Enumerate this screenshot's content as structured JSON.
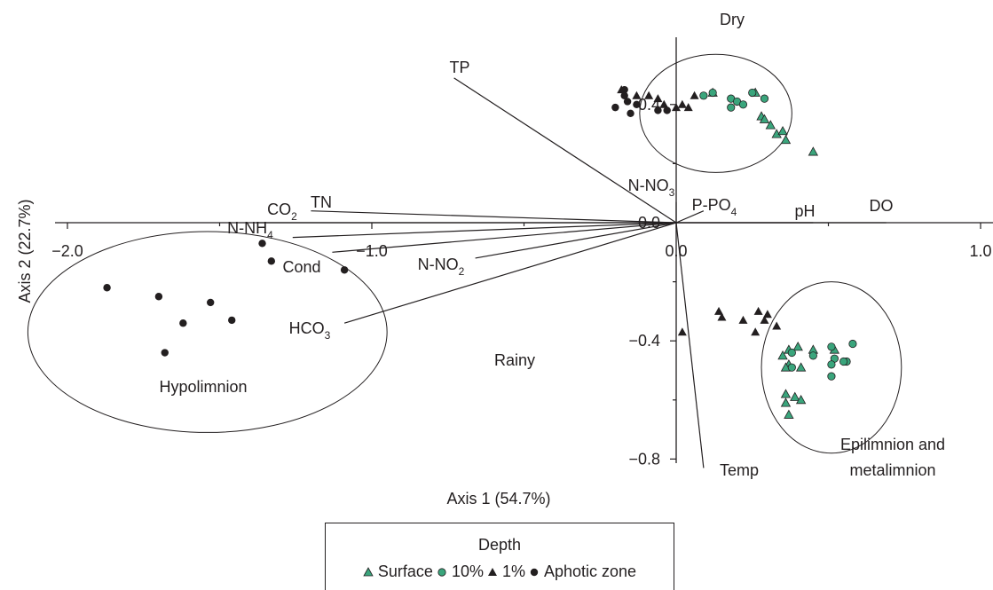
{
  "chart_data": {
    "type": "scatter",
    "xlabel": "Axis 1 (54.7%)",
    "ylabel": "Axis 2 (22.7%)",
    "xlim": [
      -2.0,
      1.0
    ],
    "ylim": [
      -0.8,
      0.6
    ],
    "x_ticks": [
      {
        "value": -2.0,
        "label": "−2.0"
      },
      {
        "value": -1.0,
        "label": "−1.0"
      },
      {
        "value": 0.0,
        "label": "0.0"
      },
      {
        "value": 1.0,
        "label": "1.0"
      }
    ],
    "y_ticks": [
      {
        "value": 0.4,
        "label": "0.4"
      },
      {
        "value": 0.0,
        "label": "0.0"
      },
      {
        "value": -0.4,
        "label": "−0.4"
      },
      {
        "value": -0.8,
        "label": "−0.8"
      }
    ],
    "grid": false,
    "legend": {
      "title": "Depth",
      "position": "bottom",
      "entries": [
        {
          "label": "Surface",
          "marker": "triangle",
          "color": "#3aa57c"
        },
        {
          "label": "10%",
          "marker": "circle",
          "color": "#3aa57c"
        },
        {
          "label": "1%",
          "marker": "triangle",
          "color": "#231f20"
        },
        {
          "label": "Aphotic zone",
          "marker": "circle",
          "color": "#231f20"
        }
      ]
    },
    "vectors": [
      {
        "name": "TP",
        "x": -0.73,
        "y": 0.49
      },
      {
        "name": "TN",
        "x": -1.2,
        "y": 0.04
      },
      {
        "name": "CO",
        "sub": "2",
        "x": -1.38,
        "y": 0.0
      },
      {
        "name": "N-NH",
        "sub": "4",
        "x": -1.26,
        "y": -0.05
      },
      {
        "name": "Cond",
        "x": -1.13,
        "y": -0.1
      },
      {
        "name": "N-NO",
        "sub": "2",
        "x": -0.66,
        "y": -0.12
      },
      {
        "name": "HCO",
        "sub": "3",
        "x": -1.09,
        "y": -0.34
      },
      {
        "name": "N-NO",
        "sub": "3",
        "x": 0.0,
        "y": 0.07
      },
      {
        "name": "P-PO",
        "sub": "4",
        "x": 0.09,
        "y": 0.04
      },
      {
        "name": "pH",
        "x": 0.45,
        "y": 0.0
      },
      {
        "name": "DO",
        "x": 0.69,
        "y": 0.0
      },
      {
        "name": "Temp",
        "x": 0.09,
        "y": -0.83
      }
    ],
    "ellipses": [
      {
        "label": "Dry",
        "cx": 0.13,
        "cy": 0.37,
        "rx": 0.25,
        "ry": 0.2
      },
      {
        "label": "Hypolimnion",
        "cx": -1.54,
        "cy": -0.37,
        "rx": 0.59,
        "ry": 0.34
      },
      {
        "label": "Epilimnion and metalimnion",
        "cx": 0.51,
        "cy": -0.49,
        "rx": 0.23,
        "ry": 0.29
      }
    ],
    "annotations": [
      "Dry",
      "Rainy",
      "Hypolimnion",
      "Epilimnion and metalimnion"
    ],
    "series": [
      {
        "name": "Surface",
        "marker": "triangle",
        "color": "#3aa57c",
        "points": [
          [
            0.12,
            0.44
          ],
          [
            0.26,
            0.44
          ],
          [
            0.28,
            0.36
          ],
          [
            0.29,
            0.35
          ],
          [
            0.31,
            0.33
          ],
          [
            0.33,
            0.3
          ],
          [
            0.35,
            0.31
          ],
          [
            0.36,
            0.28
          ],
          [
            0.45,
            0.24
          ],
          [
            0.35,
            -0.45
          ],
          [
            0.37,
            -0.43
          ],
          [
            0.4,
            -0.42
          ],
          [
            0.45,
            -0.43
          ],
          [
            0.52,
            -0.43
          ],
          [
            0.37,
            -0.48
          ],
          [
            0.36,
            -0.49
          ],
          [
            0.41,
            -0.49
          ],
          [
            0.36,
            -0.58
          ],
          [
            0.39,
            -0.59
          ],
          [
            0.36,
            -0.61
          ],
          [
            0.41,
            -0.6
          ],
          [
            0.37,
            -0.65
          ]
        ]
      },
      {
        "name": "10%",
        "marker": "circle",
        "color": "#3aa57c",
        "points": [
          [
            0.09,
            0.43
          ],
          [
            0.12,
            0.44
          ],
          [
            0.18,
            0.42
          ],
          [
            0.2,
            0.41
          ],
          [
            0.22,
            0.4
          ],
          [
            0.18,
            0.39
          ],
          [
            0.25,
            0.44
          ],
          [
            0.29,
            0.42
          ],
          [
            0.38,
            -0.44
          ],
          [
            0.45,
            -0.45
          ],
          [
            0.51,
            -0.42
          ],
          [
            0.52,
            -0.46
          ],
          [
            0.58,
            -0.41
          ],
          [
            0.51,
            -0.48
          ],
          [
            0.38,
            -0.49
          ],
          [
            0.51,
            -0.52
          ],
          [
            0.56,
            -0.47
          ],
          [
            0.55,
            -0.47
          ]
        ]
      },
      {
        "name": "1%",
        "marker": "triangle",
        "color": "#231f20",
        "points": [
          [
            -0.18,
            0.45
          ],
          [
            -0.13,
            0.43
          ],
          [
            -0.09,
            0.43
          ],
          [
            -0.06,
            0.42
          ],
          [
            -0.04,
            0.4
          ],
          [
            0.0,
            0.39
          ],
          [
            0.04,
            0.39
          ],
          [
            0.06,
            0.43
          ],
          [
            0.02,
            0.4
          ],
          [
            0.14,
            -0.3
          ],
          [
            0.15,
            -0.32
          ],
          [
            0.22,
            -0.33
          ],
          [
            0.27,
            -0.3
          ],
          [
            0.3,
            -0.31
          ],
          [
            0.29,
            -0.33
          ],
          [
            0.33,
            -0.35
          ],
          [
            0.26,
            -0.37
          ],
          [
            0.02,
            -0.37
          ]
        ]
      },
      {
        "name": "Aphotic zone",
        "marker": "circle",
        "color": "#231f20",
        "points": [
          [
            -0.17,
            0.45
          ],
          [
            -0.17,
            0.43
          ],
          [
            -0.16,
            0.41
          ],
          [
            -0.2,
            0.39
          ],
          [
            -0.15,
            0.37
          ],
          [
            -0.13,
            0.4
          ],
          [
            -0.06,
            0.38
          ],
          [
            -0.03,
            0.38
          ],
          [
            -1.36,
            -0.07
          ],
          [
            -1.33,
            -0.13
          ],
          [
            -1.09,
            -0.16
          ],
          [
            -1.87,
            -0.22
          ],
          [
            -1.7,
            -0.25
          ],
          [
            -1.53,
            -0.27
          ],
          [
            -1.62,
            -0.34
          ],
          [
            -1.46,
            -0.33
          ],
          [
            -1.68,
            -0.44
          ]
        ]
      }
    ]
  }
}
